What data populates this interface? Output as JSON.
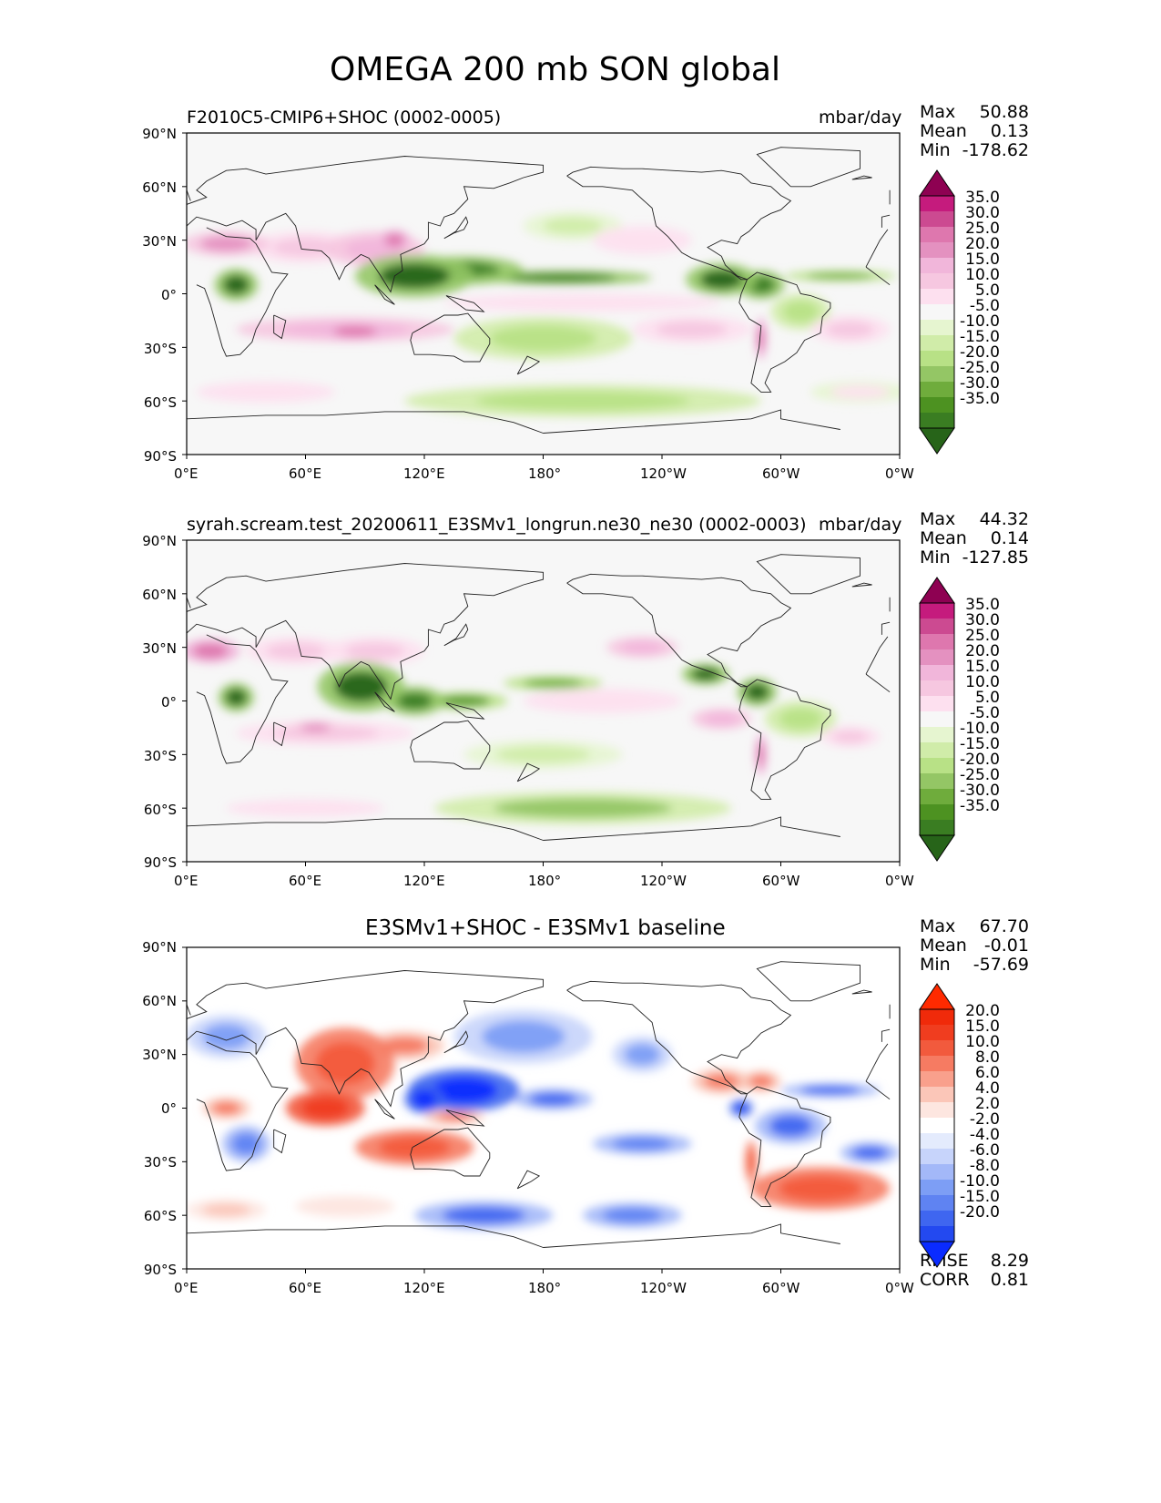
{
  "page": {
    "title": "OMEGA 200 mb SON global"
  },
  "colors": {
    "map_background": "#f7f7f7",
    "coast": "#222222",
    "piyg": [
      "#276419",
      "#3a7d22",
      "#4d9221",
      "#6fac3c",
      "#94c665",
      "#b8e186",
      "#d0eca9",
      "#e6f5d0",
      "#f7f7f7",
      "#fde0ef",
      "#f6c7e0",
      "#f1b6da",
      "#e491c0",
      "#de77ae",
      "#cc4a91",
      "#c51b7d",
      "#8e0152"
    ],
    "bwr": [
      "#0a2bff",
      "#2349f0",
      "#3f66f0",
      "#5f83f2",
      "#7d9ef5",
      "#a3b8f8",
      "#c7d4fb",
      "#e4ebfd",
      "#ffffff",
      "#fde6e0",
      "#fbc6b8",
      "#f9a08c",
      "#f67b62",
      "#f25a3d",
      "#f03d1f",
      "#f02a0a",
      "#ff2a00"
    ]
  },
  "chart_data": [
    {
      "type": "heatmap",
      "title": "F2010C5-CMIP6+SHOC (0002-0005)",
      "units": "mbar/day",
      "stats": {
        "max_label": "Max",
        "max": "50.88",
        "mean_label": "Mean",
        "mean": "0.13",
        "min_label": "Min",
        "min": "-178.62"
      },
      "x_ticks": [
        "0°E",
        "60°E",
        "120°E",
        "180°",
        "120°W",
        "60°W",
        "0°W"
      ],
      "y_ticks": [
        "90°N",
        "60°N",
        "30°N",
        "0°",
        "30°S",
        "60°S",
        "90°S"
      ],
      "xlim": [
        0,
        360
      ],
      "ylim": [
        -90,
        90
      ],
      "colorbar": {
        "levels": [
          "35.0",
          "30.0",
          "25.0",
          "20.0",
          "15.0",
          "10.0",
          "5.0",
          "-5.0",
          "-10.0",
          "-15.0",
          "-20.0",
          "-25.0",
          "-30.0",
          "-35.0"
        ],
        "cmap": "piyg"
      },
      "features": [
        {
          "lon": 20,
          "lat": 28,
          "rx": 22,
          "ry": 7,
          "value": 25
        },
        {
          "lon": 25,
          "lat": 5,
          "rx": 11,
          "ry": 9,
          "value": -35
        },
        {
          "lon": 60,
          "lat": 26,
          "rx": 28,
          "ry": 9,
          "value": 15
        },
        {
          "lon": 95,
          "lat": 25,
          "rx": 25,
          "ry": 10,
          "value": 20
        },
        {
          "lon": 105,
          "lat": 30,
          "rx": 8,
          "ry": 6,
          "value": 30
        },
        {
          "lon": 115,
          "lat": 10,
          "rx": 30,
          "ry": 12,
          "value": -35
        },
        {
          "lon": 140,
          "lat": 13,
          "rx": 30,
          "ry": 8,
          "value": -30
        },
        {
          "lon": 190,
          "lat": 9,
          "rx": 45,
          "ry": 4,
          "value": -30
        },
        {
          "lon": 270,
          "lat": 8,
          "rx": 18,
          "ry": 9,
          "value": -35
        },
        {
          "lon": 290,
          "lat": 5,
          "rx": 12,
          "ry": 8,
          "value": -30
        },
        {
          "lon": 330,
          "lat": 10,
          "rx": 28,
          "ry": 3,
          "value": -20
        },
        {
          "lon": 80,
          "lat": -20,
          "rx": 55,
          "ry": 7,
          "value": 20
        },
        {
          "lon": 85,
          "lat": -21,
          "rx": 18,
          "ry": 5,
          "value": 30
        },
        {
          "lon": 200,
          "lat": -5,
          "rx": 70,
          "ry": 5,
          "value": 10
        },
        {
          "lon": 180,
          "lat": -25,
          "rx": 45,
          "ry": 12,
          "value": -10
        },
        {
          "lon": 230,
          "lat": 30,
          "rx": 25,
          "ry": 8,
          "value": 10
        },
        {
          "lon": 195,
          "lat": 38,
          "rx": 25,
          "ry": 8,
          "value": -8
        },
        {
          "lon": 255,
          "lat": -20,
          "rx": 30,
          "ry": 8,
          "value": 12
        },
        {
          "lon": 335,
          "lat": -20,
          "rx": 20,
          "ry": 8,
          "value": 12
        },
        {
          "lon": 290,
          "lat": -25,
          "rx": 3,
          "ry": 12,
          "value": 30
        },
        {
          "lon": 310,
          "lat": -10,
          "rx": 15,
          "ry": 10,
          "value": -10
        },
        {
          "lon": 200,
          "lat": -60,
          "rx": 90,
          "ry": 9,
          "value": -12
        },
        {
          "lon": 40,
          "lat": -55,
          "rx": 35,
          "ry": 6,
          "value": 10
        },
        {
          "lon": 340,
          "lat": -55,
          "rx": 25,
          "ry": 6,
          "value": 8
        }
      ]
    },
    {
      "type": "heatmap",
      "title": "syrah.scream.test_20200611_E3SMv1_longrun.ne30_ne30 (0002-0003)",
      "units": "mbar/day",
      "stats": {
        "max_label": "Max",
        "max": "44.32",
        "mean_label": "Mean",
        "mean": "0.14",
        "min_label": "Min",
        "min": "-127.85"
      },
      "x_ticks": [
        "0°E",
        "60°E",
        "120°E",
        "180°",
        "120°W",
        "60°W",
        "0°W"
      ],
      "y_ticks": [
        "90°N",
        "60°N",
        "30°N",
        "0°",
        "30°S",
        "60°S",
        "90°S"
      ],
      "xlim": [
        0,
        360
      ],
      "ylim": [
        -90,
        90
      ],
      "colorbar": {
        "levels": [
          "35.0",
          "30.0",
          "25.0",
          "20.0",
          "15.0",
          "10.0",
          "5.0",
          "-5.0",
          "-10.0",
          "-15.0",
          "-20.0",
          "-25.0",
          "-30.0",
          "-35.0"
        ],
        "cmap": "piyg"
      },
      "features": [
        {
          "lon": 12,
          "lat": 28,
          "rx": 15,
          "ry": 7,
          "value": 30
        },
        {
          "lon": 25,
          "lat": 2,
          "rx": 9,
          "ry": 8,
          "value": -35
        },
        {
          "lon": 55,
          "lat": 28,
          "rx": 25,
          "ry": 8,
          "value": 15
        },
        {
          "lon": 95,
          "lat": 28,
          "rx": 25,
          "ry": 8,
          "value": 15
        },
        {
          "lon": 88,
          "lat": 8,
          "rx": 22,
          "ry": 14,
          "value": -35
        },
        {
          "lon": 115,
          "lat": 0,
          "rx": 15,
          "ry": 8,
          "value": -30
        },
        {
          "lon": 140,
          "lat": 0,
          "rx": 22,
          "ry": 5,
          "value": -25
        },
        {
          "lon": 185,
          "lat": 10,
          "rx": 25,
          "ry": 4,
          "value": -20
        },
        {
          "lon": 262,
          "lat": 15,
          "rx": 12,
          "ry": 6,
          "value": -35
        },
        {
          "lon": 288,
          "lat": 5,
          "rx": 10,
          "ry": 8,
          "value": -35
        },
        {
          "lon": 230,
          "lat": 30,
          "rx": 18,
          "ry": 6,
          "value": 20
        },
        {
          "lon": 70,
          "lat": -18,
          "rx": 45,
          "ry": 7,
          "value": 15
        },
        {
          "lon": 65,
          "lat": -15,
          "rx": 12,
          "ry": 4,
          "value": 25
        },
        {
          "lon": 210,
          "lat": 0,
          "rx": 40,
          "ry": 7,
          "value": 10
        },
        {
          "lon": 270,
          "lat": -10,
          "rx": 15,
          "ry": 6,
          "value": 20
        },
        {
          "lon": 290,
          "lat": -30,
          "rx": 3,
          "ry": 12,
          "value": 30
        },
        {
          "lon": 310,
          "lat": -10,
          "rx": 18,
          "ry": 10,
          "value": -10
        },
        {
          "lon": 200,
          "lat": -60,
          "rx": 75,
          "ry": 9,
          "value": -15
        },
        {
          "lon": 60,
          "lat": -60,
          "rx": 40,
          "ry": 5,
          "value": 10
        },
        {
          "lon": 335,
          "lat": -20,
          "rx": 15,
          "ry": 6,
          "value": 15
        },
        {
          "lon": 180,
          "lat": -30,
          "rx": 40,
          "ry": 8,
          "value": -8
        }
      ]
    },
    {
      "type": "heatmap",
      "title": "E3SMv1+SHOC - E3SMv1 baseline",
      "stats": {
        "max_label": "Max",
        "max": "67.70",
        "mean_label": "Mean",
        "mean": "-0.01",
        "min_label": "Min",
        "min": "-57.69"
      },
      "metrics": {
        "rmse_label": "RMSE",
        "rmse": "8.29",
        "corr_label": "CORR",
        "corr": "0.81"
      },
      "x_ticks": [
        "0°E",
        "60°E",
        "120°E",
        "180°",
        "120°W",
        "60°W",
        "0°W"
      ],
      "y_ticks": [
        "90°N",
        "60°N",
        "30°N",
        "0°",
        "30°S",
        "60°S",
        "90°S"
      ],
      "xlim": [
        0,
        360
      ],
      "ylim": [
        -90,
        90
      ],
      "colorbar": {
        "levels": [
          "20.0",
          "15.0",
          "10.0",
          "8.0",
          "6.0",
          "4.0",
          "2.0",
          "-2.0",
          "-4.0",
          "-6.0",
          "-8.0",
          "-10.0",
          "-15.0",
          "-20.0"
        ],
        "cmap": "bwr"
      },
      "features": [
        {
          "lon": 20,
          "lat": 40,
          "rx": 20,
          "ry": 12,
          "value": -6
        },
        {
          "lon": 20,
          "lat": 0,
          "rx": 12,
          "ry": 6,
          "value": 10
        },
        {
          "lon": 30,
          "lat": -20,
          "rx": 12,
          "ry": 10,
          "value": -8
        },
        {
          "lon": 80,
          "lat": 25,
          "rx": 25,
          "ry": 20,
          "value": 15
        },
        {
          "lon": 70,
          "lat": 0,
          "rx": 20,
          "ry": 10,
          "value": 20
        },
        {
          "lon": 110,
          "lat": 35,
          "rx": 20,
          "ry": 8,
          "value": 10
        },
        {
          "lon": 140,
          "lat": 10,
          "rx": 28,
          "ry": 12,
          "value": -20
        },
        {
          "lon": 120,
          "lat": 5,
          "rx": 10,
          "ry": 8,
          "value": -20
        },
        {
          "lon": 115,
          "lat": -22,
          "rx": 30,
          "ry": 10,
          "value": 15
        },
        {
          "lon": 135,
          "lat": -5,
          "rx": 15,
          "ry": 4,
          "value": 10
        },
        {
          "lon": 185,
          "lat": 5,
          "rx": 20,
          "ry": 6,
          "value": -10
        },
        {
          "lon": 170,
          "lat": 40,
          "rx": 35,
          "ry": 15,
          "value": -6
        },
        {
          "lon": 230,
          "lat": 30,
          "rx": 15,
          "ry": 10,
          "value": -6
        },
        {
          "lon": 270,
          "lat": 15,
          "rx": 15,
          "ry": 7,
          "value": 10
        },
        {
          "lon": 290,
          "lat": 15,
          "rx": 10,
          "ry": 6,
          "value": 10
        },
        {
          "lon": 280,
          "lat": 0,
          "rx": 6,
          "ry": 5,
          "value": -15
        },
        {
          "lon": 305,
          "lat": -10,
          "rx": 18,
          "ry": 10,
          "value": -10
        },
        {
          "lon": 325,
          "lat": 10,
          "rx": 25,
          "ry": 4,
          "value": -10
        },
        {
          "lon": 320,
          "lat": -45,
          "rx": 35,
          "ry": 12,
          "value": 15
        },
        {
          "lon": 345,
          "lat": -25,
          "rx": 15,
          "ry": 6,
          "value": -10
        },
        {
          "lon": 230,
          "lat": -20,
          "rx": 25,
          "ry": 6,
          "value": -8
        },
        {
          "lon": 150,
          "lat": -60,
          "rx": 35,
          "ry": 8,
          "value": -10
        },
        {
          "lon": 225,
          "lat": -60,
          "rx": 25,
          "ry": 7,
          "value": -8
        },
        {
          "lon": 20,
          "lat": -57,
          "rx": 20,
          "ry": 6,
          "value": 6
        },
        {
          "lon": 80,
          "lat": -55,
          "rx": 25,
          "ry": 6,
          "value": 4
        },
        {
          "lon": 285,
          "lat": -30,
          "rx": 3,
          "ry": 12,
          "value": 15
        }
      ]
    }
  ]
}
